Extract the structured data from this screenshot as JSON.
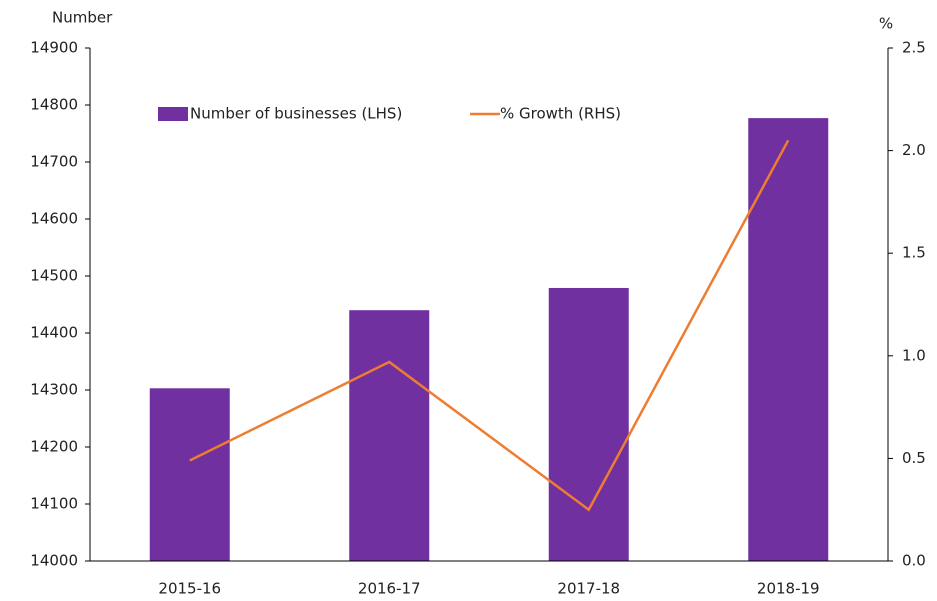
{
  "chart_data": {
    "type": "bar",
    "y_label": "Number",
    "y2_label": "%",
    "categories": [
      "2015-16",
      "2016-17",
      "2017-18",
      "2018-19"
    ],
    "series": [
      {
        "name": "Number of businesses (LHS)",
        "color": "#7030a0",
        "type": "bar",
        "values": [
          14303,
          14440,
          14479,
          14777
        ]
      },
      {
        "name": "% Growth (RHS)",
        "color": "#ed7d31",
        "type": "line",
        "axis": "y2",
        "values": [
          0.49,
          0.97,
          0.25,
          2.05
        ]
      }
    ],
    "ylim": [
      14000,
      14900
    ],
    "yticks": [
      14000,
      14100,
      14200,
      14300,
      14400,
      14500,
      14600,
      14700,
      14800,
      14900
    ],
    "y2lim": [
      0,
      2.5
    ],
    "y2ticks": [
      {
        "value": 0,
        "label": "0.0"
      },
      {
        "value": 0.5,
        "label": "0.5"
      },
      {
        "value": 1,
        "label": "1.0"
      },
      {
        "value": 1.5,
        "label": "1.5"
      },
      {
        "value": 2,
        "label": "2.0"
      },
      {
        "value": 2.5,
        "label": "2.5"
      }
    ],
    "legend": "top",
    "grid": false
  }
}
